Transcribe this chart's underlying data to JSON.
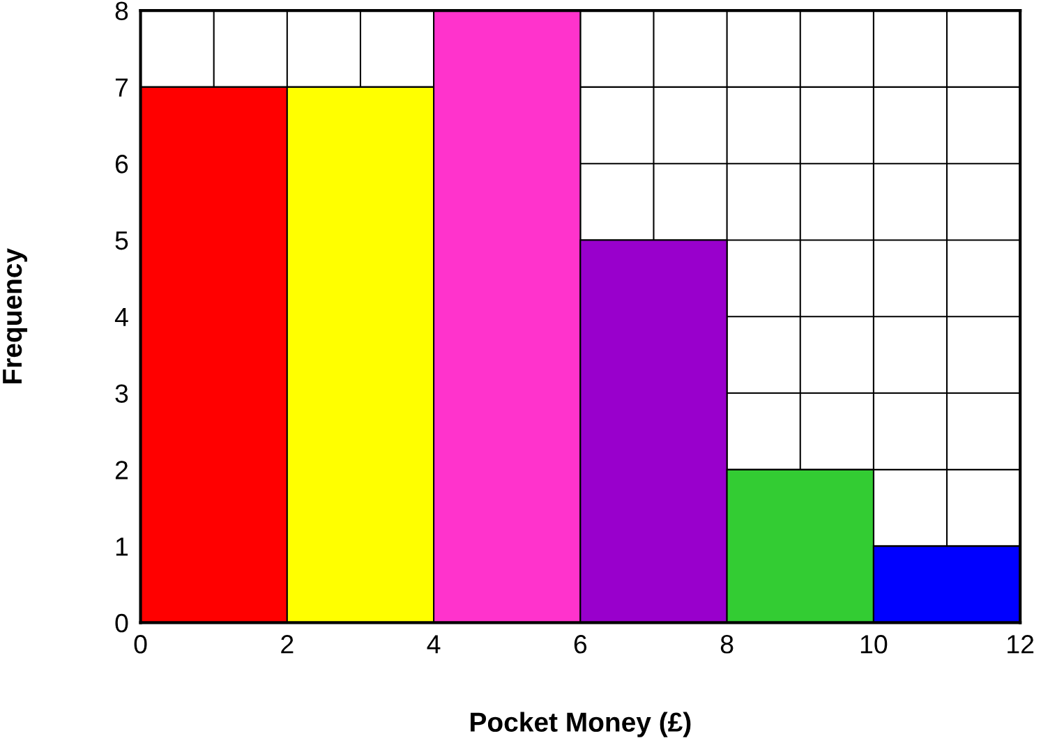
{
  "chart_data": {
    "type": "histogram",
    "xlabel": "Pocket Money (£)",
    "ylabel": "Frequency",
    "bins": [
      0,
      2,
      4,
      6,
      8,
      10,
      12
    ],
    "values": [
      7,
      7,
      8,
      5,
      2,
      1
    ],
    "colors": [
      "#ff0000",
      "#ffff00",
      "#ff33cc",
      "#9900cc",
      "#33cc33",
      "#0000ff"
    ],
    "xlim": [
      0,
      12
    ],
    "ylim": [
      0,
      8
    ],
    "xticks": [
      0,
      2,
      4,
      6,
      8,
      10,
      12
    ],
    "yticks": [
      0,
      1,
      2,
      3,
      4,
      5,
      6,
      7,
      8
    ],
    "grid": true
  }
}
